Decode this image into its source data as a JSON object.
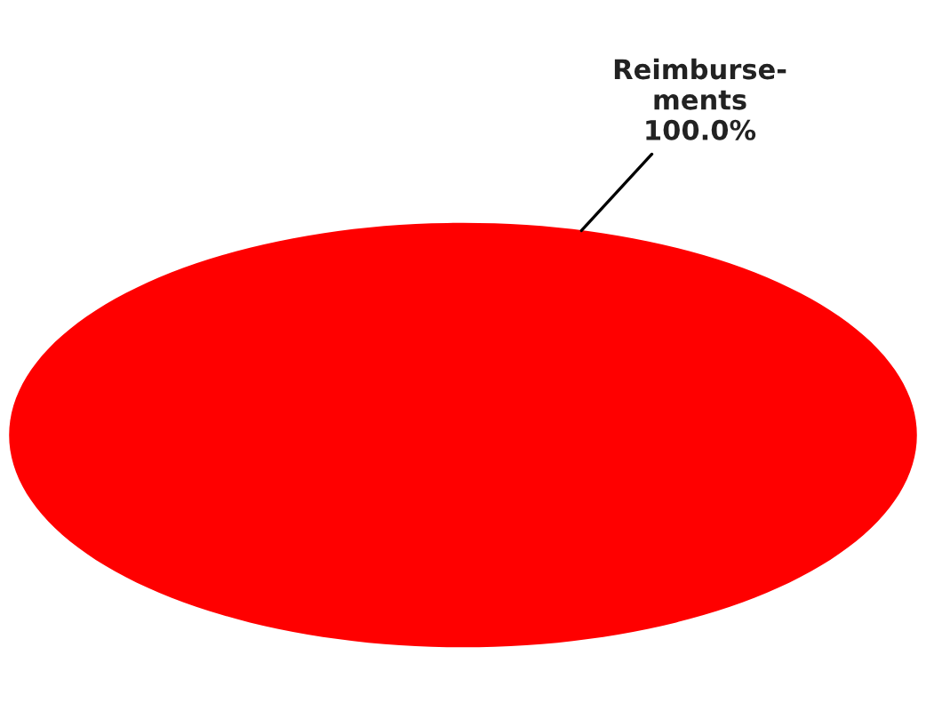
{
  "chart_data": {
    "type": "pie",
    "categories": [
      "Reimburse-\nments"
    ],
    "values": [
      100
    ],
    "colors": [
      "#ff0000"
    ],
    "value_labels": [
      "100.0%"
    ]
  }
}
